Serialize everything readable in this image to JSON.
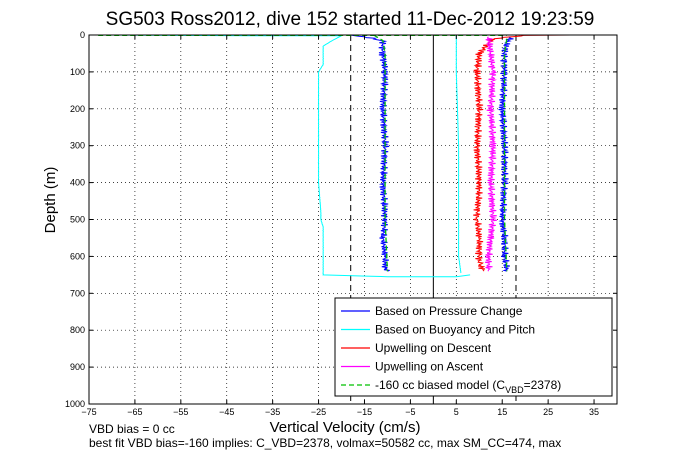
{
  "chart_data": {
    "type": "line",
    "title": "SG503 Ross2012, dive 152 started 11-Dec-2012 19:23:59",
    "xlabel": "Vertical Velocity (cm/s)",
    "ylabel": "Depth (m)",
    "xlim": [
      -75,
      40
    ],
    "ylim": [
      0,
      1000
    ],
    "y_reversed": true,
    "grid": true,
    "xticks": [
      -75,
      -65,
      -55,
      -45,
      -35,
      -25,
      -15,
      -5,
      5,
      15,
      25,
      35
    ],
    "yticks": [
      0,
      100,
      200,
      300,
      400,
      500,
      600,
      700,
      800,
      900,
      1000
    ],
    "reference_lines": [
      {
        "name": "zero",
        "x": 0,
        "style": "solid"
      },
      {
        "name": "minus-18",
        "x": -18,
        "style": "dashed"
      },
      {
        "name": "plus-18",
        "x": 18,
        "style": "dashed"
      }
    ],
    "series": [
      {
        "name": "Based on Pressure Change",
        "color": "#0000ff",
        "segments": [
          {
            "x": [
              -18,
              -15,
              -11,
              -11,
              -10.5,
              -11,
              -10.5,
              -11,
              -10.5,
              -11,
              -10.5,
              -10.5,
              -10
            ],
            "depth": [
              0,
              5,
              15,
              50,
              100,
              200,
              300,
              400,
              500,
              550,
              600,
              630,
              640
            ]
          },
          {
            "x": [
              17,
              16,
              15.5,
              15.5,
              15,
              15.5,
              15.5,
              15,
              15.5,
              15.5,
              16
            ],
            "depth": [
              5,
              20,
              50,
              100,
              200,
              300,
              400,
              500,
              550,
              600,
              640
            ]
          }
        ]
      },
      {
        "name": "Based on Buoyancy and Pitch",
        "color": "#00ffff",
        "segments": [
          {
            "x": [
              -73,
              -40,
              -20,
              -22,
              -24,
              -24,
              -24,
              -25,
              -25,
              -25,
              -24.5,
              -24.5,
              -24,
              -24,
              -10,
              5,
              8
            ],
            "depth": [
              0,
              2,
              2,
              15,
              30,
              60,
              80,
              100,
              200,
              400,
              480,
              500,
              520,
              650,
              655,
              655,
              650
            ]
          },
          {
            "x": [
              5,
              5,
              5.5,
              5.5,
              5.5,
              6
            ],
            "depth": [
              0,
              100,
              300,
              500,
              600,
              645
            ]
          }
        ]
      },
      {
        "name": "Upwelling on Descent",
        "color": "#ff0000",
        "segments": [
          {
            "x": [
              40,
              30,
              20,
              13,
              10,
              9.5,
              10,
              9.5,
              10,
              9.5,
              10,
              10,
              11
            ],
            "depth": [
              0,
              0,
              1,
              10,
              50,
              100,
              200,
              300,
              400,
              500,
              550,
              620,
              640
            ]
          }
        ]
      },
      {
        "name": "Upwelling on Ascent",
        "color": "#ff00ff",
        "segments": [
          {
            "x": [
              12,
              12.5,
              13,
              12.5,
              13,
              12.5,
              13,
              12.5,
              12,
              12
            ],
            "depth": [
              5,
              50,
              100,
              200,
              300,
              400,
              500,
              550,
              600,
              640
            ]
          }
        ]
      },
      {
        "name": "-160 cc biased model (C",
        "name_sub": "VBD",
        "name_suffix": "=2378)",
        "color": "#00c000",
        "dashed": true,
        "segments": [
          {
            "x": [
              -13,
              -11,
              -10.5,
              -10.5,
              -10.5,
              -10.5,
              -10.5,
              -10.5,
              -10
            ],
            "depth": [
              0,
              15,
              50,
              100,
              200,
              300,
              400,
              500,
              640
            ]
          },
          {
            "x": [
              16,
              15.5,
              15.5,
              15.5,
              15.5,
              15.5,
              16
            ],
            "depth": [
              10,
              50,
              100,
              200,
              300,
              500,
              640
            ]
          },
          {
            "x": [
              -73,
              16
            ],
            "depth": [
              1,
              1
            ]
          }
        ]
      }
    ],
    "legend_position": "bottom-right",
    "annotations": {
      "vbd_bias": "VBD bias = 0 cc",
      "best_fit": "best fit VBD bias=-160 implies: C_VBD=2378, volmax=50582 cc, max SM_CC=474, max"
    }
  }
}
